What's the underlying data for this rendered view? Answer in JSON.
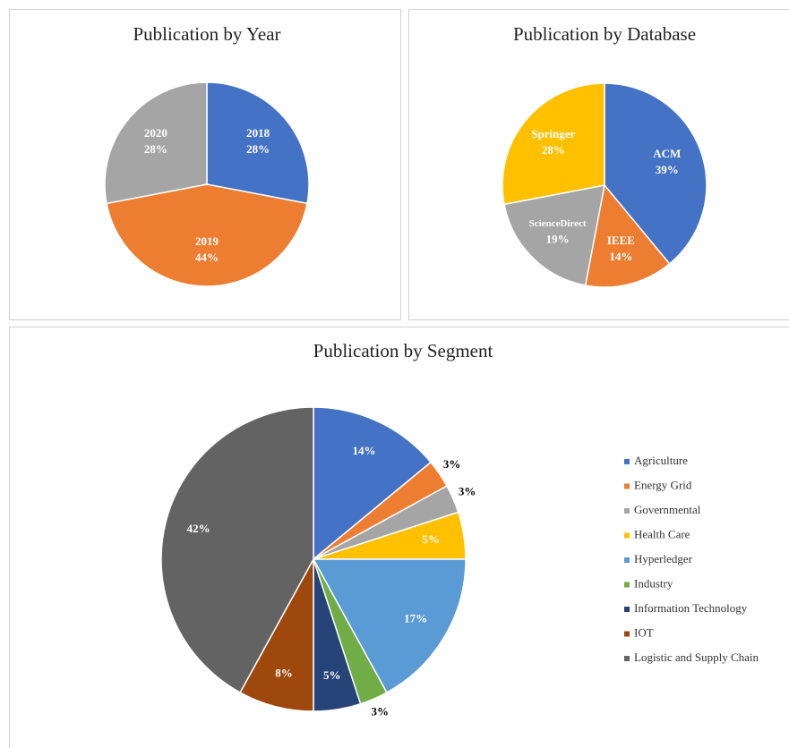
{
  "chart_data": [
    {
      "type": "pie",
      "title": "Publication by Year",
      "categories": [
        "2018",
        "2019",
        "2020"
      ],
      "values": [
        28,
        44,
        28
      ],
      "value_labels": [
        "28%",
        "44%",
        "28%"
      ],
      "colors": [
        "#4472c4",
        "#ed7d31",
        "#a5a5a5"
      ]
    },
    {
      "type": "pie",
      "title": "Publication by Database",
      "categories": [
        "ACM",
        "IEEE",
        "ScienceDirect",
        "Springer"
      ],
      "values": [
        39,
        14,
        19,
        28
      ],
      "value_labels": [
        "39%",
        "14%",
        "19%",
        "28%"
      ],
      "colors": [
        "#4472c4",
        "#ed7d31",
        "#a5a5a5",
        "#ffc000"
      ]
    },
    {
      "type": "pie",
      "title": "Publication by Segment",
      "categories": [
        "Agriculture",
        "Energy Grid",
        "Governmental",
        "Health Care",
        "Hyperledger",
        "Industry",
        "Information Technology",
        "IOT",
        "Logistic and Supply Chain"
      ],
      "values": [
        14,
        3,
        3,
        5,
        17,
        3,
        5,
        8,
        42
      ],
      "value_labels": [
        "14%",
        "3%",
        "3%",
        "5%",
        "17%",
        "3%",
        "5%",
        "8%",
        "42%"
      ],
      "colors": [
        "#4472c4",
        "#ed7d31",
        "#a5a5a5",
        "#ffc000",
        "#5b9bd5",
        "#70ad47",
        "#264478",
        "#9e480e",
        "#636363"
      ],
      "legend": "right"
    }
  ]
}
